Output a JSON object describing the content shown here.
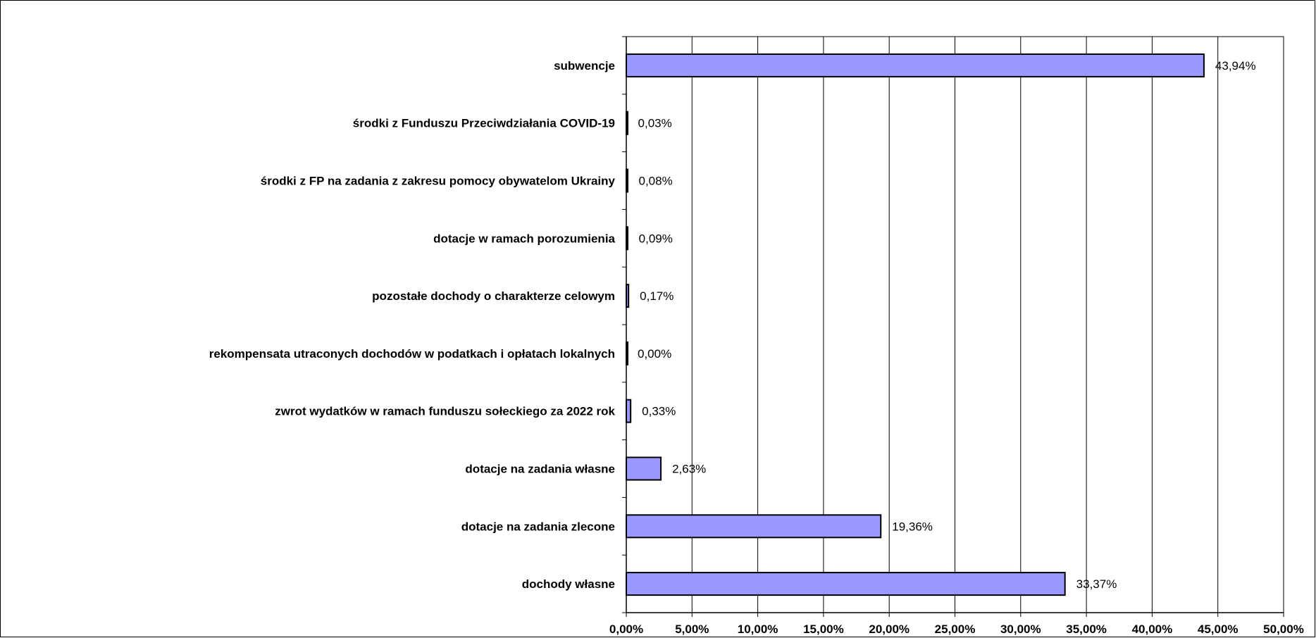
{
  "chart_data": {
    "type": "bar",
    "orientation": "horizontal",
    "title": "",
    "xlabel": "",
    "ylabel": "",
    "xlim": [
      0,
      50
    ],
    "grid": true,
    "legend": "none",
    "bar_color": "#9999ff",
    "bar_edge_color": "#000000",
    "categories": [
      "subwencje",
      "środki z Funduszu Przeciwdziałania COVID-19",
      "środki z FP na zadania z zakresu pomocy obywatelom Ukrainy",
      "dotacje w ramach porozumienia",
      "pozostałe dochody o charakterze celowym",
      "rekompensata utraconych dochodów w podatkach i opłatach lokalnych",
      "zwrot wydatków w ramach funduszu sołeckiego za 2022 rok",
      "dotacje na zadania własne",
      "dotacje na zadania zlecone",
      "dochody własne"
    ],
    "values": [
      43.94,
      0.03,
      0.08,
      0.09,
      0.17,
      0.0,
      0.33,
      2.63,
      19.36,
      33.37
    ],
    "data_labels": [
      "43,94%",
      "0,03%",
      "0,08%",
      "0,09%",
      "0,17%",
      "0,00%",
      "0,33%",
      "2,63%",
      "19,36%",
      "33,37%"
    ],
    "x_ticks": [
      0,
      5,
      10,
      15,
      20,
      25,
      30,
      35,
      40,
      45,
      50
    ],
    "x_tick_labels": [
      "0,00%",
      "5,00%",
      "10,00%",
      "15,00%",
      "20,00%",
      "25,00%",
      "30,00%",
      "35,00%",
      "40,00%",
      "45,00%",
      "50,00%"
    ]
  }
}
